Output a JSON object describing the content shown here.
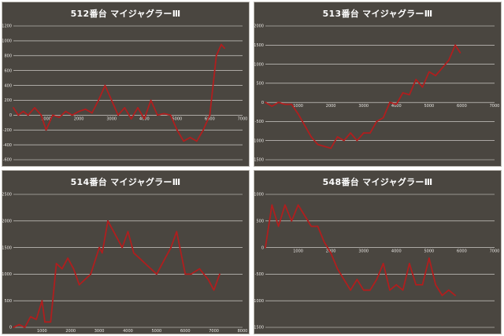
{
  "chart_data": [
    {
      "type": "line",
      "title": "512番台 マイジャグラーⅢ",
      "color": "#b01e1e",
      "xlim": [
        0,
        7000
      ],
      "ylim": [
        -600,
        1200
      ],
      "xticks": [
        0,
        1000,
        2000,
        3000,
        4000,
        5000,
        6000,
        7000
      ],
      "yticks": [
        -600,
        -400,
        -200,
        0,
        200,
        400,
        600,
        800,
        1000,
        1200
      ],
      "grid": true,
      "x": [
        0,
        150,
        300,
        450,
        650,
        850,
        1000,
        1200,
        1400,
        1600,
        1800,
        2000,
        2200,
        2400,
        2600,
        2800,
        3000,
        3200,
        3400,
        3600,
        3800,
        4000,
        4200,
        4400,
        4600,
        4800,
        5000,
        5200,
        5400,
        5600,
        5800,
        6000,
        6200,
        6350,
        6450
      ],
      "y": [
        100,
        0,
        50,
        0,
        100,
        0,
        -200,
        0,
        -30,
        50,
        0,
        50,
        80,
        30,
        200,
        400,
        200,
        0,
        100,
        -50,
        100,
        -50,
        200,
        0,
        20,
        0,
        -200,
        -350,
        -300,
        -350,
        -200,
        0,
        800,
        950,
        900
      ]
    },
    {
      "type": "line",
      "title": "513番台 マイジャグラーⅢ",
      "color": "#b01e1e",
      "xlim": [
        0,
        7000
      ],
      "ylim": [
        -1500,
        2000
      ],
      "xticks": [
        0,
        1000,
        2000,
        3000,
        4000,
        5000,
        6000,
        7000
      ],
      "yticks": [
        -1500,
        -1000,
        -500,
        0,
        500,
        1000,
        1500,
        2000
      ],
      "grid": true,
      "x": [
        0,
        200,
        400,
        600,
        800,
        1000,
        1200,
        1400,
        1600,
        1800,
        2000,
        2200,
        2400,
        2600,
        2800,
        3000,
        3200,
        3400,
        3600,
        3800,
        4000,
        4200,
        4400,
        4600,
        4800,
        5000,
        5200,
        5400,
        5600,
        5800,
        5950
      ],
      "y": [
        0,
        -100,
        0,
        -50,
        -50,
        -300,
        -600,
        -900,
        -1100,
        -1150,
        -1200,
        -900,
        -1000,
        -800,
        -1000,
        -800,
        -800,
        -500,
        -400,
        0,
        -50,
        250,
        200,
        600,
        400,
        800,
        700,
        900,
        1100,
        1500,
        1300
      ]
    },
    {
      "type": "line",
      "title": "514番台 マイジャグラーⅢ",
      "color": "#b01e1e",
      "xlim": [
        0,
        8000
      ],
      "ylim": [
        0,
        2500
      ],
      "xticks": [
        0,
        1000,
        2000,
        3000,
        4000,
        5000,
        6000,
        7000,
        8000
      ],
      "yticks": [
        0,
        500,
        1000,
        1500,
        2000,
        2500
      ],
      "grid": true,
      "x": [
        0,
        200,
        400,
        600,
        800,
        1000,
        1100,
        1300,
        1500,
        1700,
        1900,
        2100,
        2300,
        2500,
        2700,
        3000,
        3100,
        3300,
        3500,
        3800,
        4000,
        4200,
        4400,
        4600,
        4800,
        5000,
        5300,
        5500,
        5700,
        6000,
        6200,
        6500,
        6800,
        7000,
        7200
      ],
      "y": [
        0,
        50,
        0,
        200,
        150,
        500,
        100,
        100,
        1200,
        1100,
        1300,
        1100,
        800,
        900,
        1000,
        1500,
        1400,
        2000,
        1800,
        1500,
        1800,
        1400,
        1300,
        1200,
        1100,
        1000,
        1300,
        1500,
        1800,
        1000,
        1000,
        1100,
        900,
        700,
        1000
      ]
    },
    {
      "type": "line",
      "title": "548番台 マイジャグラーⅢ",
      "color": "#b01e1e",
      "xlim": [
        0,
        7000
      ],
      "ylim": [
        -1500,
        1000
      ],
      "xticks": [
        0,
        1000,
        2000,
        3000,
        4000,
        5000,
        6000,
        7000
      ],
      "yticks": [
        -1500,
        -1000,
        -500,
        0,
        500,
        1000
      ],
      "grid": true,
      "x": [
        0,
        200,
        400,
        600,
        800,
        1000,
        1200,
        1400,
        1600,
        1800,
        2000,
        2200,
        2400,
        2600,
        2800,
        3000,
        3200,
        3400,
        3600,
        3800,
        4000,
        4200,
        4400,
        4600,
        4800,
        5000,
        5200,
        5400,
        5600,
        5800
      ],
      "y": [
        0,
        800,
        400,
        800,
        500,
        800,
        600,
        400,
        400,
        100,
        -100,
        -400,
        -600,
        -800,
        -600,
        -800,
        -800,
        -600,
        -300,
        -800,
        -700,
        -800,
        -300,
        -700,
        -700,
        -200,
        -700,
        -900,
        -800,
        -900
      ]
    }
  ]
}
